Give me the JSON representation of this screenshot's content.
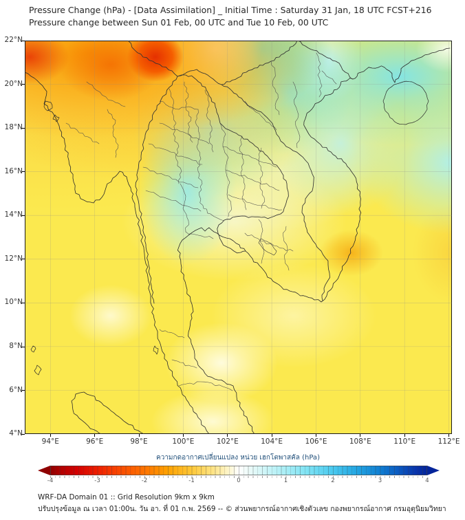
{
  "header": {
    "title": "Pressure Change (hPa) - [Data Assimilation] _ Initial Time : Saturday 31 Jan, 18 UTC FCST+216",
    "subtitle": "Pressure change between Sun 01 Feb, 00 UTC and Tue 10 Feb, 00 UTC"
  },
  "map_axes": {
    "lat_labels": [
      "22°N",
      "20°N",
      "18°N",
      "16°N",
      "14°N",
      "12°N",
      "10°N",
      "8°N",
      "6°N",
      "4°N"
    ],
    "lon_labels": [
      "94°E",
      "96°E",
      "98°E",
      "100°E",
      "102°E",
      "104°E",
      "106°E",
      "108°E",
      "110°E",
      "112°E"
    ]
  },
  "colorbar": {
    "label": "ความกดอากาศเปลี่ยนแปลง หน่วย เฮกโตพาสคัล (hPa)",
    "ticks": [
      "-4",
      "-3",
      "-2",
      "-1",
      "0",
      "1",
      "2",
      "3",
      "4"
    ],
    "units": "hPa",
    "negative_end_color": "#8f0000",
    "zero_color": "#ffffff",
    "positive_end_color": "#03249a"
  },
  "footer": {
    "line1": "WRF-DA Domain 01 :: Grid Resolution 9km x 9km",
    "line2": "ปรับปรุงข้อมูล ณ เวลา 01:00น. วัน อา. ที่ 01 ก.พ. 2569 -- © ส่วนพยากรณ์อากาศเชิงตัวเลข กองพยากรณ์อากาศ กรมอุตุนิยมวิทยา"
  },
  "map_summary": {
    "type": "filled-contour pressure-change map",
    "domain": {
      "lon_min": "93°E",
      "lon_max": "112°E",
      "lat_min": "4°N",
      "lat_max": "22°N"
    },
    "anomalies_hpa": [
      {
        "region": "northwest Myanmar band 94-101E 20-22N",
        "value": -2.5
      },
      {
        "region": "minimum core near 98.5E 21.5N",
        "value": -3.3
      },
      {
        "region": "north Vietnam / Gulf of Tonkin / Hainan 102-112E 18-22N",
        "value": 1.0
      },
      {
        "region": "north-central Thailand and Laos patch 99-104E 13-19N",
        "value": 0.5
      },
      {
        "region": "remaining domain background (yellow)",
        "value": -1.0
      },
      {
        "region": "local spot near 108E 12N off south Vietnam coast",
        "value": -1.7
      }
    ]
  }
}
